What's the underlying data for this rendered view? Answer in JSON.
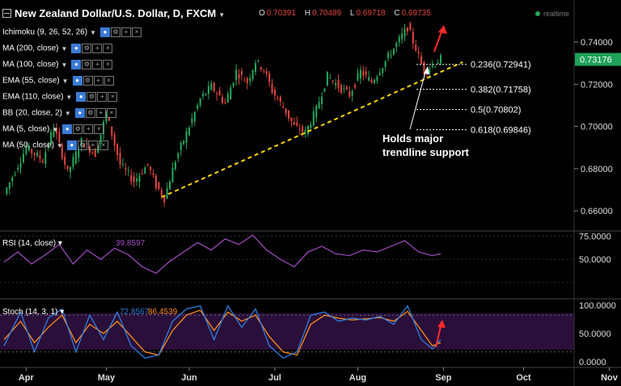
{
  "header": {
    "title": "New Zealand Dollar/U.S. Dollar, D, FXCM",
    "ohlc": [
      {
        "key": "O",
        "value": "0.70391"
      },
      {
        "key": "H",
        "value": "0.70489"
      },
      {
        "key": "L",
        "value": "0.69718"
      },
      {
        "key": "C",
        "value": "0.69735"
      }
    ],
    "status_label": "realtime"
  },
  "indicators": [
    "Ichimoku (9, 26, 52, 26)",
    "MA (200, close)",
    "MA (100, close)",
    "EMA (55, close)",
    "EMA (110, close)",
    "BB (20, close, 2)",
    "MA (5, close)",
    "MA (50, close)"
  ],
  "chart_data": {
    "type": "candlestick",
    "x_tick_labels": [
      "Apr",
      "May",
      "Jun",
      "Jul",
      "Aug",
      "Sep",
      "Oct",
      "Nov"
    ],
    "main": {
      "ylim": [
        0.652,
        0.7515
      ],
      "y_ticks": [
        "0.74000",
        "0.72000",
        "0.70000",
        "0.68000",
        "0.66000"
      ],
      "current_price": "0.73176",
      "close_path": [
        [
          0,
          0.668
        ],
        [
          8,
          0.69
        ],
        [
          14,
          0.684
        ],
        [
          18,
          0.7
        ],
        [
          23,
          0.678
        ],
        [
          28,
          0.693
        ],
        [
          33,
          0.687
        ],
        [
          37,
          0.706
        ],
        [
          42,
          0.682
        ],
        [
          47,
          0.674
        ],
        [
          52,
          0.682
        ],
        [
          55,
          0.672
        ],
        [
          58,
          0.666
        ],
        [
          62,
          0.684
        ],
        [
          67,
          0.7
        ],
        [
          71,
          0.713
        ],
        [
          75,
          0.719
        ],
        [
          80,
          0.711
        ],
        [
          84,
          0.726
        ],
        [
          88,
          0.721
        ],
        [
          91,
          0.731
        ],
        [
          94,
          0.727
        ],
        [
          97,
          0.717
        ],
        [
          101,
          0.709
        ],
        [
          105,
          0.7
        ],
        [
          109,
          0.697
        ],
        [
          113,
          0.708
        ],
        [
          117,
          0.724
        ],
        [
          121,
          0.719
        ],
        [
          125,
          0.715
        ],
        [
          129,
          0.726
        ],
        [
          133,
          0.721
        ],
        [
          136,
          0.727
        ],
        [
          140,
          0.735
        ],
        [
          144,
          0.743
        ],
        [
          146,
          0.747
        ],
        [
          149,
          0.737
        ],
        [
          152,
          0.726
        ],
        [
          155,
          0.729
        ],
        [
          158,
          0.732
        ]
      ],
      "trendline": {
        "from": [
          57,
          0.6665
        ],
        "to": [
          166,
          0.7305
        ],
        "label": "Holds major trendline support"
      },
      "fib_levels": [
        {
          "label": "0.236(0.72941)",
          "value": 0.72941
        },
        {
          "label": "0.382(0.71758)",
          "value": 0.71758
        },
        {
          "label": "0.5(0.70802)",
          "value": 0.70802
        },
        {
          "label": "0.618(0.69846)",
          "value": 0.69846
        }
      ]
    },
    "rsi": {
      "label": "RSI (14, close)",
      "value_label": "39.8597",
      "ylim": [
        12,
        77
      ],
      "y_ticks": [
        "75.0000",
        "50.0000"
      ],
      "values": [
        [
          0,
          47
        ],
        [
          5,
          58
        ],
        [
          10,
          45
        ],
        [
          15,
          55
        ],
        [
          20,
          66
        ],
        [
          25,
          45
        ],
        [
          30,
          60
        ],
        [
          35,
          50
        ],
        [
          40,
          62
        ],
        [
          45,
          55
        ],
        [
          50,
          42
        ],
        [
          55,
          35
        ],
        [
          60,
          48
        ],
        [
          65,
          58
        ],
        [
          70,
          68
        ],
        [
          75,
          60
        ],
        [
          80,
          72
        ],
        [
          85,
          66
        ],
        [
          90,
          76
        ],
        [
          95,
          60
        ],
        [
          100,
          50
        ],
        [
          105,
          42
        ],
        [
          110,
          58
        ],
        [
          115,
          64
        ],
        [
          120,
          56
        ],
        [
          125,
          54
        ],
        [
          130,
          60
        ],
        [
          135,
          58
        ],
        [
          140,
          64
        ],
        [
          145,
          70
        ],
        [
          150,
          58
        ],
        [
          155,
          54
        ],
        [
          158,
          56
        ]
      ]
    },
    "stoch": {
      "label": "Stoch (14, 3, 1)",
      "k_label": "72.8567",
      "d_label": "86.4539",
      "ylim": [
        0,
        100
      ],
      "y_ticks": [
        "100.0000",
        "50.0000",
        "0.0000"
      ],
      "k_color": "#2f7fe0",
      "d_color": "#ff8c1a",
      "k_values": [
        [
          0,
          30
        ],
        [
          6,
          85
        ],
        [
          11,
          20
        ],
        [
          16,
          75
        ],
        [
          21,
          90
        ],
        [
          26,
          20
        ],
        [
          31,
          80
        ],
        [
          36,
          40
        ],
        [
          41,
          85
        ],
        [
          46,
          30
        ],
        [
          51,
          10
        ],
        [
          56,
          15
        ],
        [
          61,
          70
        ],
        [
          66,
          90
        ],
        [
          71,
          95
        ],
        [
          76,
          40
        ],
        [
          81,
          95
        ],
        [
          86,
          60
        ],
        [
          91,
          90
        ],
        [
          96,
          30
        ],
        [
          101,
          10
        ],
        [
          106,
          20
        ],
        [
          111,
          80
        ],
        [
          116,
          85
        ],
        [
          121,
          70
        ],
        [
          126,
          75
        ],
        [
          131,
          72
        ],
        [
          136,
          78
        ],
        [
          141,
          65
        ],
        [
          146,
          95
        ],
        [
          151,
          40
        ],
        [
          155,
          25
        ],
        [
          158,
          40
        ]
      ],
      "d_values": [
        [
          0,
          40
        ],
        [
          6,
          70
        ],
        [
          11,
          35
        ],
        [
          16,
          60
        ],
        [
          21,
          80
        ],
        [
          26,
          35
        ],
        [
          31,
          65
        ],
        [
          36,
          50
        ],
        [
          41,
          70
        ],
        [
          46,
          45
        ],
        [
          51,
          20
        ],
        [
          56,
          15
        ],
        [
          61,
          55
        ],
        [
          66,
          80
        ],
        [
          71,
          88
        ],
        [
          76,
          55
        ],
        [
          81,
          85
        ],
        [
          86,
          70
        ],
        [
          91,
          80
        ],
        [
          96,
          45
        ],
        [
          101,
          20
        ],
        [
          106,
          15
        ],
        [
          111,
          65
        ],
        [
          116,
          80
        ],
        [
          121,
          75
        ],
        [
          126,
          72
        ],
        [
          131,
          74
        ],
        [
          136,
          76
        ],
        [
          141,
          70
        ],
        [
          146,
          86
        ],
        [
          151,
          55
        ],
        [
          155,
          30
        ],
        [
          158,
          35
        ]
      ]
    },
    "colors": {
      "up": "#26a65b",
      "down": "#e0463c",
      "trendline": "#ffd400",
      "rsi_line": "#a64dc6",
      "arrow": "#ff2a2a",
      "price_badge": "#1fa15a"
    }
  }
}
